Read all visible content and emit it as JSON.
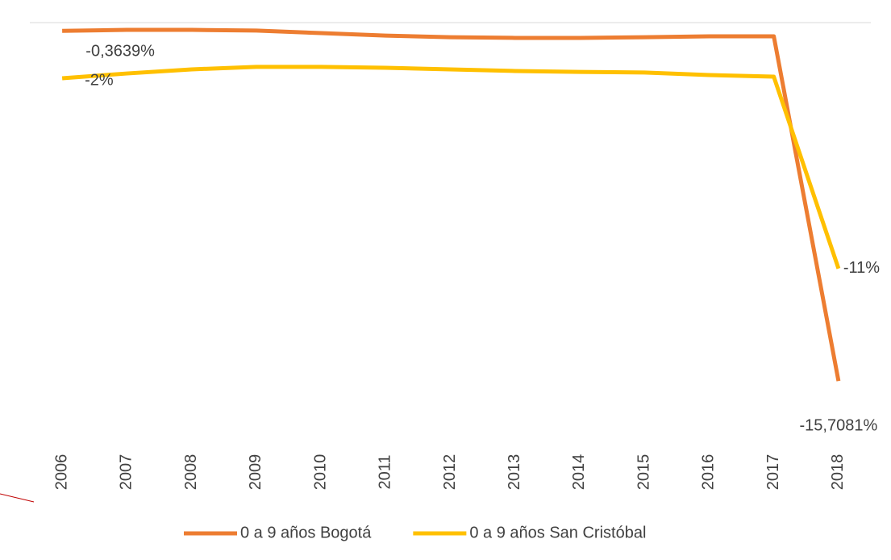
{
  "chart_data": {
    "type": "line",
    "categories": [
      "2006",
      "2007",
      "2008",
      "2009",
      "2010",
      "2011",
      "2012",
      "2013",
      "2014",
      "2015",
      "2016",
      "2017",
      "2018"
    ],
    "series": [
      {
        "name": "0 a 9 años Bogotá",
        "color": "#ed7d31",
        "values": [
          -0.3639,
          -0.32,
          -0.32,
          -0.35,
          -0.46,
          -0.57,
          -0.64,
          -0.67,
          -0.67,
          -0.64,
          -0.6,
          -0.6,
          -15.7081
        ],
        "value_labels": [
          "-0,3639%",
          null,
          null,
          null,
          null,
          null,
          null,
          null,
          null,
          null,
          null,
          null,
          "-15,7081%"
        ]
      },
      {
        "name": "0 a 9 años San Cristóbal",
        "color": "#ffc000",
        "values": [
          -2.44,
          -2.23,
          -2.05,
          -1.94,
          -1.94,
          -1.98,
          -2.05,
          -2.12,
          -2.16,
          -2.19,
          -2.3,
          -2.37,
          -10.78
        ],
        "value_labels": [
          "-2%",
          null,
          null,
          null,
          null,
          null,
          null,
          null,
          null,
          null,
          null,
          null,
          "-11%"
        ]
      }
    ],
    "ylim": [
      -18,
      0
    ],
    "legend": "bottom"
  }
}
